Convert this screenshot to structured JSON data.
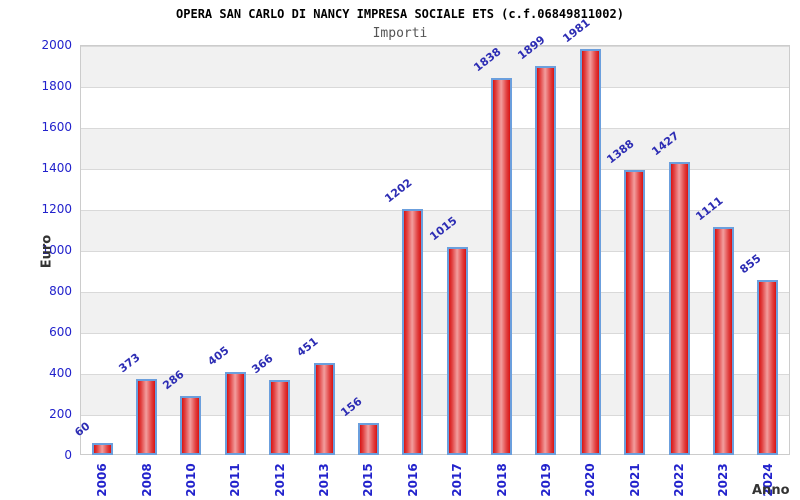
{
  "header": {
    "title": "OPERA SAN CARLO DI NANCY IMPRESA SOCIALE ETS (c.f.06849811002)",
    "subtitle": "Importi"
  },
  "chart_data": {
    "type": "bar",
    "title": "OPERA SAN CARLO DI NANCY IMPRESA SOCIALE ETS (c.f.06849811002)",
    "subtitle": "Importi",
    "xlabel": "Anno",
    "ylabel": "Euro",
    "categories": [
      "2006",
      "2008",
      "2010",
      "2011",
      "2012",
      "2013",
      "2015",
      "2016",
      "2017",
      "2018",
      "2019",
      "2020",
      "2021",
      "2022",
      "2023",
      "2024"
    ],
    "values": [
      60,
      373,
      286,
      405,
      366,
      451,
      156,
      1202,
      1015,
      1838,
      1899,
      1981,
      1388,
      1427,
      1111,
      855
    ],
    "ylim": [
      0,
      2000
    ],
    "yticks": [
      0,
      200,
      400,
      600,
      800,
      1000,
      1200,
      1400,
      1600,
      1800,
      2000
    ],
    "grid": "alternating horizontal bands every 200 units, light gray gridlines",
    "legend_position": "none",
    "bar_value_labels": "shown above bars, rotated"
  },
  "colors": {
    "bar_fill_dark": "#d81414",
    "bar_fill_light": "#f29e9e",
    "bar_border": "#6b9fdd",
    "tick_text": "#2222cc",
    "value_label_text": "#2d2db4",
    "axis_label_text": "#333333",
    "band_gray": "#f1f1f1",
    "gridline": "#d9d9d9",
    "plot_border": "#cccccc",
    "title_text": "#000000",
    "subtitle_text": "#555555"
  }
}
